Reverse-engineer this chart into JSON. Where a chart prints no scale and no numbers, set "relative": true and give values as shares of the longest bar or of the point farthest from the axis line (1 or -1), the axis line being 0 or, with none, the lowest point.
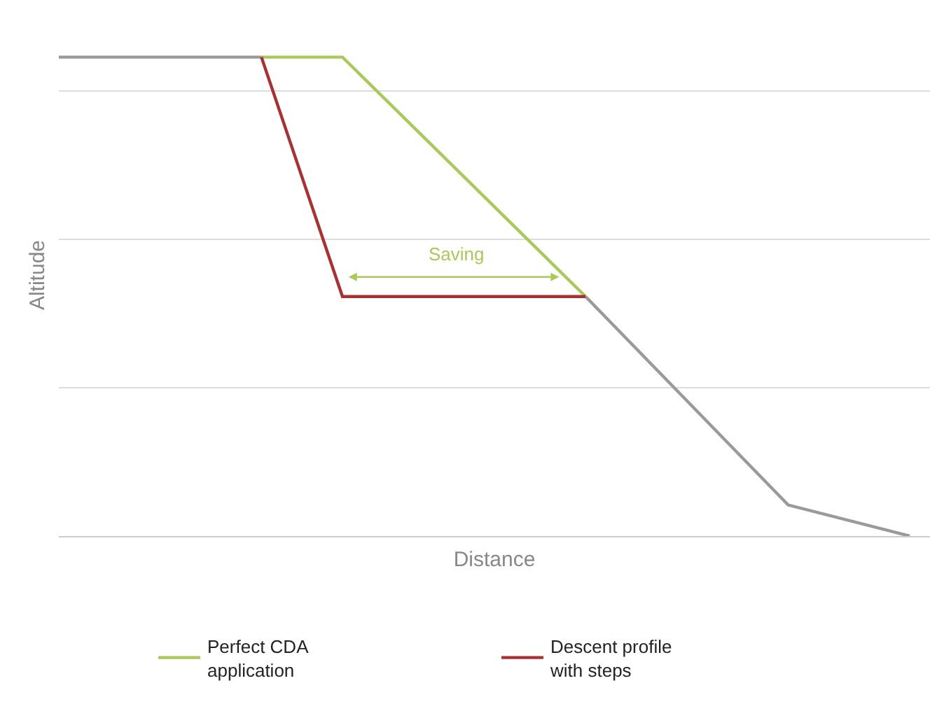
{
  "chart_data": {
    "type": "line",
    "relative": true,
    "xlabel": "Distance",
    "ylabel": "Altitude",
    "categories": [
      null,
      null,
      null,
      null,
      null,
      null,
      null,
      null,
      null,
      null,
      null,
      null,
      null,
      null,
      null,
      null,
      null,
      null,
      null,
      null,
      null,
      null
    ],
    "series": [
      {
        "color": "#9a9a9a",
        "values": [
          1,
          null,
          null,
          null,
          null,
          1,
          null,
          null,
          null,
          null,
          null,
          null,
          null,
          null,
          null,
          null,
          null,
          null,
          null,
          null,
          null,
          null
        ]
      },
      {
        "color": "#9a9a9a",
        "values": [
          null,
          null,
          null,
          null,
          null,
          null,
          null,
          null,
          null,
          null,
          null,
          null,
          null,
          0.5,
          null,
          null,
          null,
          null,
          0.065,
          null,
          null,
          0
        ]
      },
      {
        "name": "Perfect CDA application",
        "color": "#a9c95a",
        "values": [
          null,
          null,
          null,
          null,
          null,
          1,
          null,
          1,
          null,
          null,
          null,
          null,
          null,
          0.5,
          null,
          null,
          null,
          null,
          null,
          null,
          null,
          null
        ]
      },
      {
        "name": "Descent profile with steps",
        "color": "#a83232",
        "values": [
          null,
          null,
          null,
          null,
          null,
          1,
          null,
          0.5,
          null,
          null,
          null,
          null,
          null,
          0.5,
          null,
          null,
          null,
          null,
          null,
          null,
          null,
          null
        ]
      }
    ],
    "annotations": [
      "Saving"
    ],
    "grid": "y",
    "legend": "bottom",
    "marker": "none",
    "line_style": "solid"
  }
}
